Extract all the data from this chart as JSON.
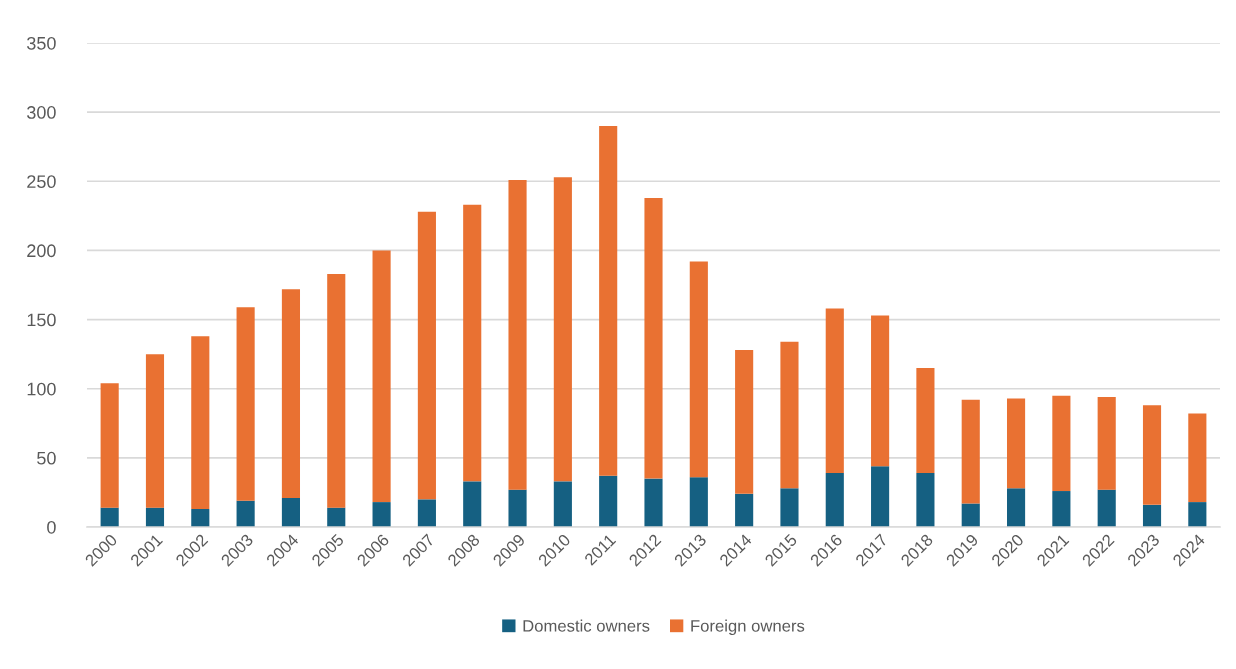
{
  "chart_data": {
    "type": "bar",
    "stacked": true,
    "categories": [
      "2000",
      "2001",
      "2002",
      "2003",
      "2004",
      "2005",
      "2006",
      "2007",
      "2008",
      "2009",
      "2010",
      "2011",
      "2012",
      "2013",
      "2014",
      "2015",
      "2016",
      "2017",
      "2018",
      "2019",
      "2020",
      "2021",
      "2022",
      "2023",
      "2024"
    ],
    "series": [
      {
        "name": "Domestic owners",
        "color": "#156082",
        "values": [
          14,
          14,
          13,
          19,
          21,
          14,
          18,
          20,
          33,
          27,
          33,
          37,
          35,
          36,
          24,
          28,
          39,
          44,
          39,
          17,
          28,
          26,
          27,
          16,
          18
        ]
      },
      {
        "name": "Foreign owners",
        "color": "#e97132",
        "values": [
          90,
          111,
          125,
          140,
          151,
          169,
          182,
          208,
          200,
          224,
          220,
          253,
          203,
          156,
          104,
          106,
          119,
          109,
          76,
          75,
          65,
          69,
          67,
          72,
          64
        ]
      }
    ],
    "ylim": [
      0,
      350
    ],
    "yticks": [
      0,
      50,
      100,
      150,
      200,
      250,
      300,
      350
    ],
    "grid": "y",
    "legend": "bottom"
  }
}
